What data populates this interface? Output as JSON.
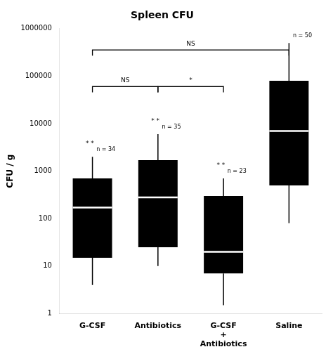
{
  "chart_data": {
    "type": "box",
    "title": "Spleen CFU",
    "ylabel": "CFU / g",
    "categories": [
      "G-CSF",
      "Antibiotics",
      "G-CSF\n+\nAntibiotics",
      "Saline"
    ],
    "boxes": [
      {
        "q1": 15,
        "median": 170,
        "q3": 700,
        "whisker_low": 4,
        "whisker_high": 2000
      },
      {
        "q1": 25,
        "median": 280,
        "q3": 1700,
        "whisker_low": 10,
        "whisker_high": 6000
      },
      {
        "q1": 7,
        "median": 20,
        "q3": 300,
        "whisker_low": 1.5,
        "whisker_high": 700
      },
      {
        "q1": 500,
        "median": 7000,
        "q3": 80000,
        "whisker_low": 80,
        "whisker_high": 500000
      }
    ],
    "n_labels": [
      "n = 34",
      "n = 35",
      "n = 23",
      "n = 50"
    ],
    "star_labels": [
      "* *",
      "* *",
      "* *",
      null
    ],
    "brackets": [
      {
        "from": "G-CSF",
        "to": "Antibiotics",
        "y": 60255.96,
        "label": "NS"
      },
      {
        "from": "Antibiotics",
        "to": "G-CSF\n+\nAntibiotics",
        "y": 60255.96,
        "label": "*"
      },
      {
        "from": "G-CSF",
        "to": "Saline",
        "y": 354813.39,
        "label": "NS"
      }
    ],
    "color": "black",
    "log": "y",
    "ylim": [
      1,
      1000000
    ],
    "yticks": [
      1,
      10,
      100,
      1000,
      10000,
      100000,
      1000000
    ],
    "grid": false
  }
}
